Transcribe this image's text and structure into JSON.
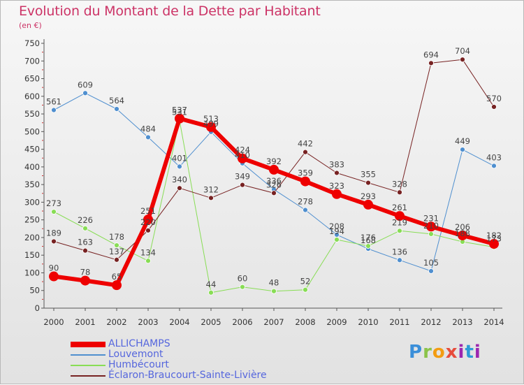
{
  "title": "Evolution du Montant de la Dette par Habitant",
  "subtitle": "(en €)",
  "logo": "Proxiti",
  "chart_data": {
    "type": "line",
    "x": [
      2000,
      2001,
      2002,
      2003,
      2004,
      2005,
      2006,
      2007,
      2008,
      2009,
      2010,
      2011,
      2012,
      2013,
      2014
    ],
    "ylim": [
      0,
      750
    ],
    "yticks": [
      0,
      50,
      100,
      150,
      200,
      250,
      300,
      350,
      400,
      450,
      500,
      550,
      600,
      650,
      700,
      750
    ],
    "grid": false,
    "legend_position": "bottom-left",
    "series": [
      {
        "name": "ALLICHAMPS",
        "color": "#ee0000",
        "width": 6,
        "marker": 7,
        "values": [
          90,
          78,
          65,
          251,
          537,
          513,
          424,
          392,
          359,
          323,
          293,
          261,
          231,
          206,
          182
        ]
      },
      {
        "name": "Louvemont",
        "color": "#4f8fcf",
        "width": 1,
        "marker": 3,
        "values": [
          561,
          609,
          564,
          484,
          401,
          499,
          410,
          336,
          278,
          208,
          168,
          136,
          105,
          449,
          403
        ]
      },
      {
        "name": "Humbécourt",
        "color": "#88dd55",
        "width": 1,
        "marker": 3,
        "values": [
          273,
          226,
          178,
          134,
          531,
          44,
          60,
          48,
          52,
          194,
          176,
          219,
          210,
          188,
          173
        ]
      },
      {
        "name": "Éclaron-Braucourt-Sainte-Livière",
        "color": "#772222",
        "width": 1,
        "marker": 3,
        "values": [
          189,
          163,
          137,
          220,
          340,
          312,
          349,
          326,
          442,
          383,
          355,
          328,
          694,
          704,
          570
        ]
      }
    ]
  }
}
